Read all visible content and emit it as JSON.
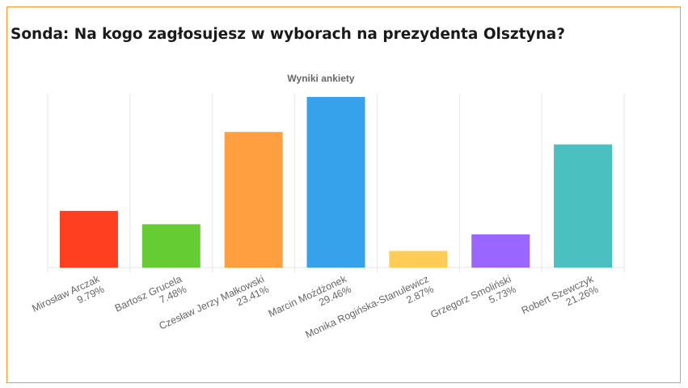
{
  "poll": {
    "title": "Sonda: Na kogo zagłosujesz w wyborach na prezydenta Olsztyna?"
  },
  "colors": {
    "frame_border": "#f29a2e",
    "grid": "#e6e6e6",
    "label_text": "#666666"
  },
  "chart_data": {
    "type": "bar",
    "title": "Wyniki ankiety",
    "xlabel": "",
    "ylabel": "",
    "ylim": [
      0,
      30
    ],
    "grid": "vertical separators",
    "legend": "none",
    "categories": [
      "Mirosław Arczak",
      "Bartosz Grucela",
      "Czesław Jerzy Małkowski",
      "Marcin Możdżonek",
      "Monika Rogińska-Stanulewicz",
      "Grzegorz Smoliński",
      "Robert Szewczyk"
    ],
    "values": [
      9.79,
      7.48,
      23.41,
      29.46,
      2.87,
      5.73,
      21.26
    ],
    "value_labels": [
      "9.79%",
      "7.48%",
      "23.41%",
      "29.46%",
      "2.87%",
      "5.73%",
      "21.26%"
    ],
    "colors": [
      "#ff3f1f",
      "#66cc33",
      "#ff9f40",
      "#36a2eb",
      "#ffcd56",
      "#9966ff",
      "#4bc0c0"
    ]
  }
}
